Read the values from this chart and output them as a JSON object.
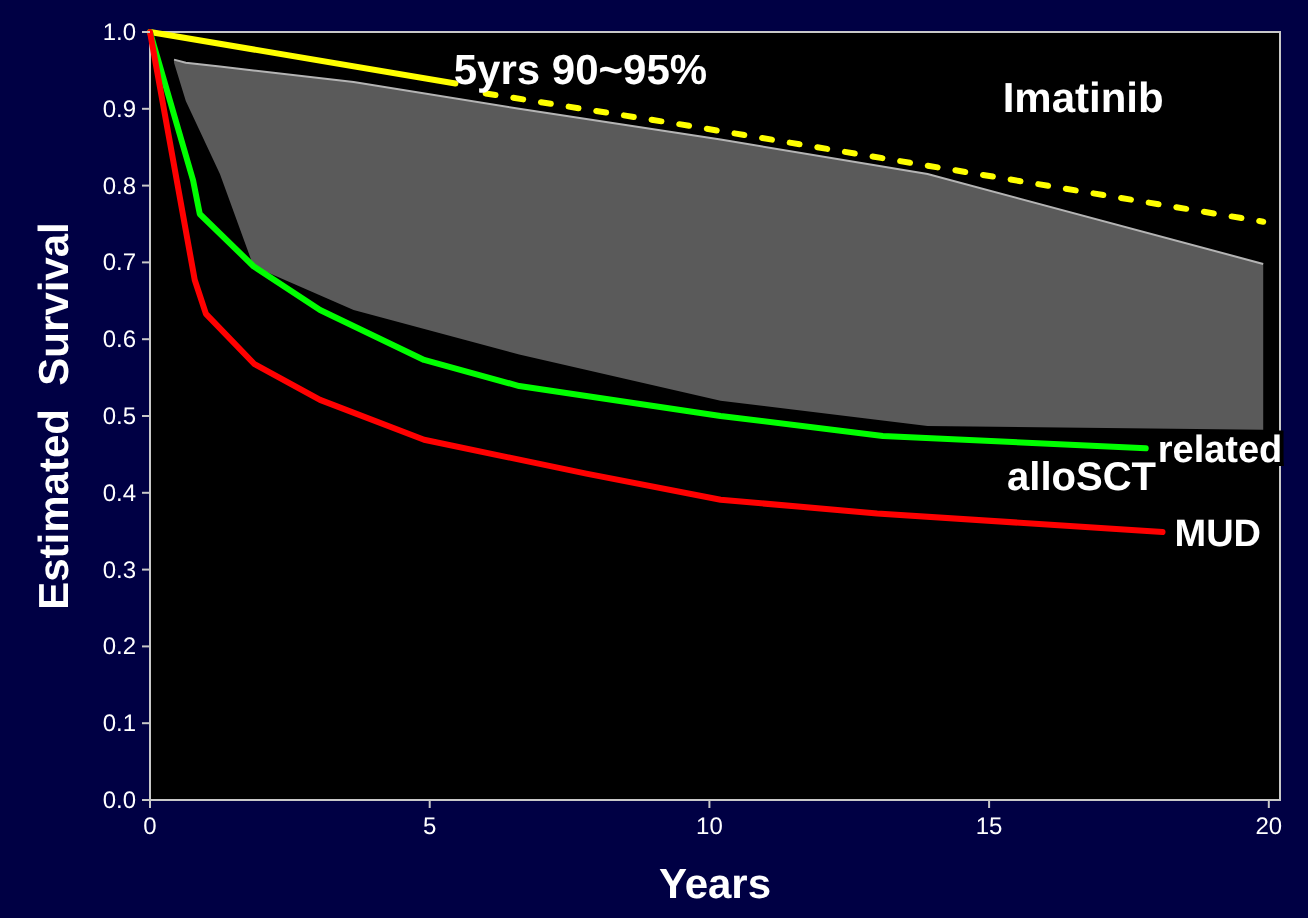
{
  "chart_data": {
    "type": "line",
    "xlabel": "Years",
    "ylabel": "Estimated  Survival",
    "xlim": [
      0,
      20.2
    ],
    "ylim": [
      0,
      1.0
    ],
    "xticks": [
      0,
      5,
      10,
      15,
      20
    ],
    "yticks": [
      {
        "value": 0,
        "label": "0.0"
      },
      0.1,
      0.2,
      0.3,
      0.4,
      0.5,
      0.6,
      0.7,
      0.8,
      0.9,
      {
        "value": 1,
        "label": "1.0"
      }
    ],
    "grid": false,
    "series": [
      {
        "color": "#b4b4b4",
        "line_style": "solid",
        "x": [
          0.43,
          0.64,
          1.25,
          1.85,
          3.64,
          6.6,
          10.2,
          13.9,
          19.9
        ],
        "lower": [
          0.96,
          0.91,
          0.815,
          0.695,
          0.638,
          0.58,
          0.52,
          0.487,
          0.482
        ],
        "upper": [
          0.964,
          0.96,
          0.955,
          0.95,
          0.935,
          0.9,
          0.86,
          0.815,
          0.698
        ],
        "values": [
          0.964,
          0.96,
          0.955,
          0.95,
          0.935,
          0.9,
          0.86,
          0.815,
          0.698
        ]
      },
      {
        "color": "#ffff00",
        "line_style": "solid",
        "x": [
          0,
          5.46
        ],
        "values": [
          1.0,
          0.933
        ]
      },
      {
        "name": "Imatinib",
        "color": "#ffff00",
        "line_style": "dotted",
        "x": [
          6.0,
          9.46,
          14.8,
          19.9
        ],
        "values": [
          0.92,
          0.88,
          0.815,
          0.753
        ]
      },
      {
        "name": "related",
        "color": "#00ff00",
        "line_style": "solid",
        "x": [
          0,
          0.77,
          0.89,
          1.85,
          3.04,
          4.9,
          6.6,
          10.2,
          13.1,
          17.8
        ],
        "values": [
          1.0,
          0.807,
          0.763,
          0.695,
          0.638,
          0.573,
          0.539,
          0.5,
          0.474,
          0.458
        ]
      },
      {
        "name": "MUD",
        "color": "#ff0000",
        "line_style": "solid",
        "x": [
          0,
          0.8,
          1.0,
          1.86,
          3.04,
          4.9,
          7.8,
          10.2,
          13.0,
          18.1
        ],
        "values": [
          1.0,
          0.677,
          0.633,
          0.568,
          0.521,
          0.469,
          0.425,
          0.391,
          0.373,
          0.349
        ]
      }
    ],
    "annotations": [
      {
        "text": "5yrs 90~95%",
        "x": 5,
        "y": 0.95
      },
      "alloSCT"
    ]
  }
}
